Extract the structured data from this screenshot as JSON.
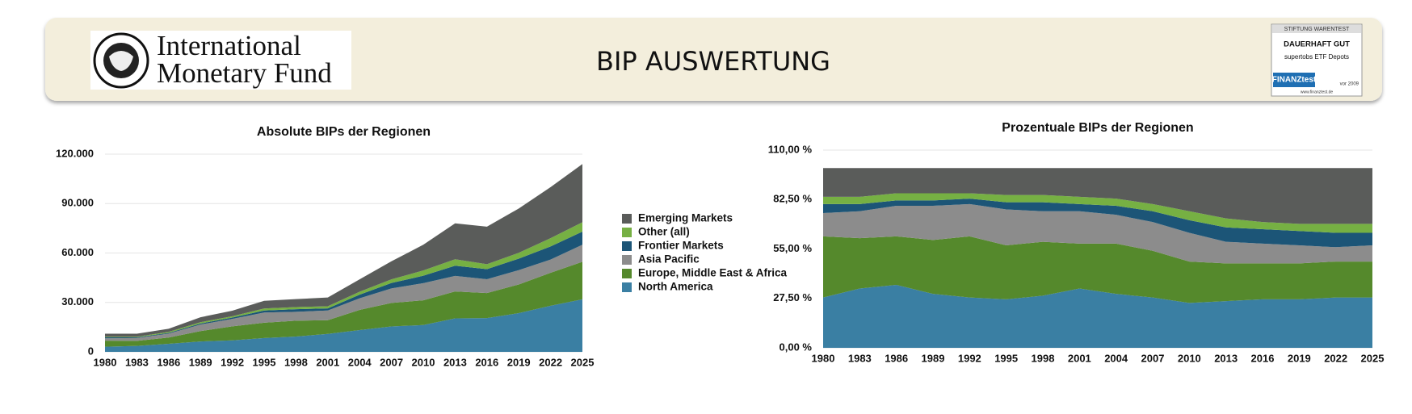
{
  "header": {
    "logo_lines": [
      "International",
      "Monetary Fund"
    ],
    "title": "BIP AUSWERTUNG",
    "badge": {
      "top": "STIFTUNG WARENTEST",
      "rating": "DAUERHAFT GUT",
      "subject": "supertobs ETF Depots",
      "brand": "FINANZtest",
      "date": "vor 2009",
      "url": "www.finanztest.de"
    }
  },
  "chart_data": [
    {
      "type": "stacked_area",
      "title": "Absolute BIPs der Regionen",
      "x": [
        1980,
        1983,
        1986,
        1989,
        1992,
        1995,
        1998,
        2001,
        2004,
        2007,
        2010,
        2013,
        2016,
        2019,
        2022,
        2025
      ],
      "xlim": [
        1980,
        2025
      ],
      "xticks": [
        1980,
        1983,
        1986,
        1989,
        1992,
        1995,
        1998,
        2001,
        2004,
        2007,
        2010,
        2013,
        2016,
        2019,
        2022,
        2025
      ],
      "ylim": [
        0,
        120000
      ],
      "yticks": [
        0,
        {
          "value": 30000,
          "label": "30.000"
        },
        {
          "value": 60000,
          "label": "60.000"
        },
        {
          "value": 90000,
          "label": "90.000"
        },
        {
          "value": 120000,
          "label": "120.000"
        }
      ],
      "grid": true,
      "series": [
        {
          "name": "North America",
          "color": "#3a7fa3",
          "values": [
            3100,
            3600,
            4900,
            6300,
            7000,
            8400,
            9300,
            10900,
            13200,
            15400,
            16300,
            20300,
            20500,
            23500,
            28000,
            31900
          ]
        },
        {
          "name": "Europe, Middle East & Africa",
          "color": "#55892c",
          "values": [
            3700,
            3100,
            3800,
            6300,
            8500,
            9300,
            9600,
            8300,
            12300,
            14300,
            15000,
            16400,
            15200,
            17400,
            20000,
            22800
          ]
        },
        {
          "name": "Asia Pacific",
          "color": "#8c8c8c",
          "values": [
            1400,
            1700,
            2400,
            4000,
            4500,
            6200,
            5400,
            5900,
            7000,
            8800,
            10400,
            9400,
            8400,
            8700,
            8000,
            10300
          ]
        },
        {
          "name": "Frontier Markets",
          "color": "#1c5577",
          "values": [
            600,
            400,
            400,
            600,
            800,
            1200,
            1600,
            1300,
            2200,
            3300,
            4500,
            6200,
            6100,
            7000,
            8000,
            8000
          ]
        },
        {
          "name": "Other (all)",
          "color": "#76b043",
          "values": [
            400,
            400,
            600,
            800,
            800,
            1200,
            1300,
            1300,
            1800,
            2200,
            3200,
            3900,
            3000,
            3500,
            5000,
            5700
          ]
        },
        {
          "name": "Emerging Markets",
          "color": "#5a5c5a",
          "values": [
            1800,
            1800,
            1900,
            3000,
            3400,
            4700,
            4800,
            5300,
            7500,
            11000,
            15600,
            21800,
            22800,
            26900,
            31000,
            35300
          ]
        }
      ]
    },
    {
      "type": "stacked_area",
      "title": "Prozentuale BIPs der Regionen",
      "x": [
        1980,
        1983,
        1986,
        1989,
        1992,
        1995,
        1998,
        2001,
        2004,
        2007,
        2010,
        2013,
        2016,
        2019,
        2022,
        2025
      ],
      "xlim": [
        1980,
        2025
      ],
      "xticks": [
        1980,
        1983,
        1986,
        1989,
        1992,
        1995,
        1998,
        2001,
        2004,
        2007,
        2010,
        2013,
        2016,
        2019,
        2022,
        2025
      ],
      "ylim": [
        0,
        110
      ],
      "yticks": [
        {
          "value": 0,
          "label": "0,00 %"
        },
        {
          "value": 27.5,
          "label": "27,50 %"
        },
        {
          "value": 55,
          "label": "55,00 %"
        },
        {
          "value": 82.5,
          "label": "82,50 %"
        },
        {
          "value": 110,
          "label": "110,00 %"
        }
      ],
      "grid": true,
      "series": [
        {
          "values": [
            28,
            33,
            35,
            30,
            28,
            27,
            29,
            33,
            30,
            28,
            25,
            26,
            27,
            27,
            28,
            28
          ]
        },
        {
          "values": [
            34,
            28,
            27,
            30,
            34,
            30,
            30,
            25,
            28,
            26,
            23,
            21,
            20,
            20,
            20,
            20
          ]
        },
        {
          "values": [
            13,
            15,
            17,
            19,
            18,
            20,
            17,
            18,
            16,
            16,
            16,
            12,
            11,
            10,
            8,
            9
          ]
        },
        {
          "values": [
            5,
            4,
            3,
            3,
            3,
            4,
            5,
            4,
            5,
            6,
            7,
            8,
            8,
            8,
            8,
            7
          ]
        },
        {
          "values": [
            4,
            4,
            4,
            4,
            3,
            4,
            4,
            4,
            4,
            4,
            5,
            5,
            4,
            4,
            5,
            5
          ]
        },
        {
          "values": [
            16,
            16,
            14,
            14,
            14,
            15,
            15,
            16,
            17,
            20,
            24,
            28,
            30,
            31,
            31,
            31
          ]
        }
      ]
    }
  ]
}
